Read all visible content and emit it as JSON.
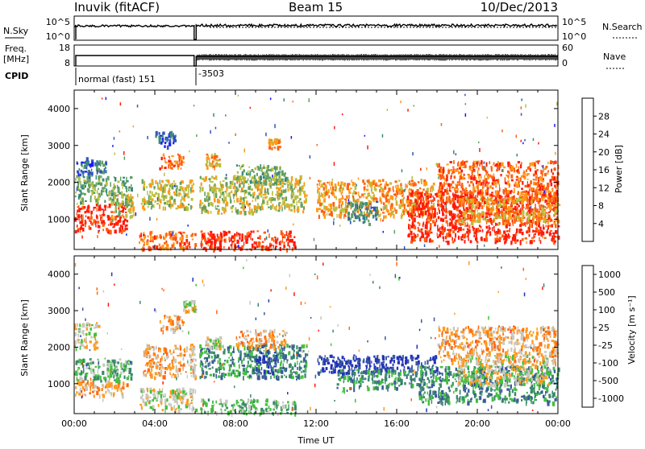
{
  "header": {
    "station": "Inuvik (fitACF)",
    "beam": "Beam 15",
    "date": "10/Dec/2013"
  },
  "strip": {
    "nsky_label": "N.Sky",
    "nsky_ticks": [
      "10^5",
      "10^0"
    ],
    "nsearch_label": "N.Search",
    "nsearch_ticks": [
      "10^5",
      "10^0"
    ],
    "freq_label_1": "Freq.",
    "freq_label_2": "[MHz]",
    "freq_ticks": [
      "18",
      "8"
    ],
    "nave_label": "Nave",
    "nave_ticks": [
      "60",
      "0"
    ],
    "cpid_label": "CPID",
    "cpid_segments": [
      {
        "label": "normal (fast) 151",
        "start_hour": 0
      },
      {
        "label": "-3503",
        "start_hour": 6
      }
    ]
  },
  "chart_data": [
    {
      "type": "heatmap",
      "name": "power-panel",
      "ylabel": "Slant Range [km]",
      "ylim": [
        180,
        4500
      ],
      "yticks": [
        "1000",
        "2000",
        "3000",
        "4000"
      ],
      "xlim_hours": [
        0,
        24
      ],
      "colorbar": {
        "label": "Power [dB]",
        "ticks": [
          "4",
          "8",
          "12",
          "16",
          "20",
          "24",
          "28"
        ],
        "colors": [
          "#1a1aff",
          "#3355bb",
          "#3a8a78",
          "#64a060",
          "#b8c040",
          "#ff9a18",
          "#ff6010",
          "#ff1a0a"
        ]
      },
      "echo_regions": [
        {
          "t": [
            0.0,
            2.6
          ],
          "r": [
            700,
            1450
          ],
          "c": 7
        },
        {
          "t": [
            0.0,
            2.8
          ],
          "r": [
            1450,
            2200
          ],
          "c": 3
        },
        {
          "t": [
            0.1,
            0.9
          ],
          "r": [
            2200,
            2700
          ],
          "c": 1
        },
        {
          "t": [
            1.0,
            1.6
          ],
          "r": [
            2300,
            2600
          ],
          "c": 2
        },
        {
          "t": [
            1.8,
            2.9
          ],
          "r": [
            1100,
            1700
          ],
          "c": 4
        },
        {
          "t": [
            3.2,
            6.0
          ],
          "r": [
            200,
            700
          ],
          "c": 6
        },
        {
          "t": [
            3.3,
            5.9
          ],
          "r": [
            1300,
            2100
          ],
          "c": 4
        },
        {
          "t": [
            4.2,
            5.4
          ],
          "r": [
            2400,
            2800
          ],
          "c": 6
        },
        {
          "t": [
            4.0,
            5.0
          ],
          "r": [
            3000,
            3400
          ],
          "c": 1
        },
        {
          "t": [
            6.2,
            11.0
          ],
          "r": [
            200,
            700
          ],
          "c": 7
        },
        {
          "t": [
            6.2,
            11.5
          ],
          "r": [
            1200,
            2200
          ],
          "c": 4
        },
        {
          "t": [
            6.5,
            7.2
          ],
          "r": [
            2400,
            2800
          ],
          "c": 5
        },
        {
          "t": [
            8.0,
            10.5
          ],
          "r": [
            2000,
            2500
          ],
          "c": 3
        },
        {
          "t": [
            9.6,
            10.2
          ],
          "r": [
            2950,
            3200
          ],
          "c": 5
        },
        {
          "t": [
            12.0,
            17.8
          ],
          "r": [
            1100,
            2100
          ],
          "c": 5
        },
        {
          "t": [
            13.5,
            15.0
          ],
          "r": [
            900,
            1500
          ],
          "c": 2
        },
        {
          "t": [
            16.5,
            24.0
          ],
          "r": [
            400,
            1800
          ],
          "c": 7
        },
        {
          "t": [
            18.0,
            24.0
          ],
          "r": [
            1500,
            2600
          ],
          "c": 6
        },
        {
          "t": [
            19.0,
            24.0
          ],
          "r": [
            900,
            1600
          ],
          "c": 5
        }
      ]
    },
    {
      "type": "heatmap",
      "name": "velocity-panel",
      "ylabel": "Slant Range [km]",
      "ylim": [
        180,
        4500
      ],
      "yticks": [
        "1000",
        "2000",
        "3000",
        "4000"
      ],
      "xlabel": "Time UT",
      "xticks": [
        "00:00",
        "04:00",
        "08:00",
        "12:00",
        "16:00",
        "20:00",
        "00:00"
      ],
      "xlim_hours": [
        0,
        24
      ],
      "colorbar": {
        "label": "Velocity [m s⁻¹]",
        "ticks": [
          "1000",
          "500",
          "100",
          "25",
          "-25",
          "-100",
          "-500",
          "-1000"
        ],
        "colors": [
          "#2233bb",
          "#3a5a9a",
          "#3a8a6a",
          "#44c040",
          "#c8c8c0",
          "#ff9a20",
          "#ff6a10",
          "#ff1a0a"
        ]
      },
      "echo_regions": [
        {
          "t": [
            0.0,
            1.2
          ],
          "r": [
            2000,
            2700
          ],
          "c": 4
        },
        {
          "t": [
            0.0,
            2.0
          ],
          "r": [
            1100,
            1700
          ],
          "c": 3
        },
        {
          "t": [
            0.0,
            2.6
          ],
          "r": [
            700,
            1100
          ],
          "c": 5
        },
        {
          "t": [
            1.6,
            2.8
          ],
          "r": [
            1100,
            1700
          ],
          "c": 3
        },
        {
          "t": [
            3.2,
            6.0
          ],
          "r": [
            300,
            900
          ],
          "c": 4
        },
        {
          "t": [
            3.4,
            6.0
          ],
          "r": [
            1200,
            2100
          ],
          "c": 5
        },
        {
          "t": [
            4.2,
            5.4
          ],
          "r": [
            2400,
            2900
          ],
          "c": 5
        },
        {
          "t": [
            5.4,
            6.0
          ],
          "r": [
            3000,
            3300
          ],
          "c": 4
        },
        {
          "t": [
            6.2,
            11.0
          ],
          "r": [
            200,
            600
          ],
          "c": 3
        },
        {
          "t": [
            6.2,
            11.5
          ],
          "r": [
            1200,
            2100
          ],
          "c": 2
        },
        {
          "t": [
            6.5,
            7.3
          ],
          "r": [
            2000,
            2300
          ],
          "c": 4
        },
        {
          "t": [
            8.0,
            10.5
          ],
          "r": [
            2000,
            2500
          ],
          "c": 5
        },
        {
          "t": [
            9.0,
            10.0
          ],
          "r": [
            1300,
            1900
          ],
          "c": 0
        },
        {
          "t": [
            12.0,
            18.0
          ],
          "r": [
            1300,
            1800
          ],
          "c": 0
        },
        {
          "t": [
            13.0,
            17.0
          ],
          "r": [
            900,
            1400
          ],
          "c": 2
        },
        {
          "t": [
            17.0,
            24.0
          ],
          "r": [
            500,
            1500
          ],
          "c": 2
        },
        {
          "t": [
            18.0,
            24.0
          ],
          "r": [
            1600,
            2600
          ],
          "c": 5
        },
        {
          "t": [
            19.0,
            23.5
          ],
          "r": [
            1000,
            1800
          ],
          "c": 4
        }
      ]
    }
  ]
}
